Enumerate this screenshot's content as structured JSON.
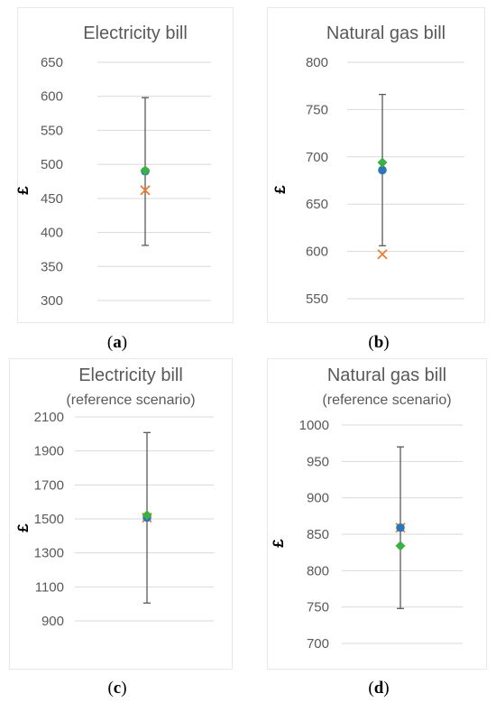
{
  "chart_data": [
    {
      "type": "scatter",
      "title": "Electricity bill",
      "subtitle": "",
      "ylabel": "£",
      "ylim": [
        300,
        650
      ],
      "yticks": [
        300,
        350,
        400,
        450,
        500,
        550,
        600,
        650
      ],
      "grid": true,
      "caption": "a",
      "series": [
        {
          "name": "",
          "marker": "circle",
          "color": "#2E75B6",
          "value": 490
        },
        {
          "name": "",
          "marker": "x",
          "color": "#ED7D31",
          "value": 462
        },
        {
          "name": "",
          "marker": "diamond",
          "color": "#3CB043",
          "value": 491
        }
      ],
      "error_range": [
        381,
        598
      ]
    },
    {
      "type": "scatter",
      "title": "Natural gas bill",
      "subtitle": "",
      "ylabel": "£",
      "ylim": [
        550,
        800
      ],
      "yticks": [
        550,
        600,
        650,
        700,
        750,
        800
      ],
      "grid": true,
      "caption": "b",
      "series": [
        {
          "name": "",
          "marker": "circle",
          "color": "#2E75B6",
          "value": 686
        },
        {
          "name": "",
          "marker": "x",
          "color": "#ED7D31",
          "value": 597
        },
        {
          "name": "",
          "marker": "diamond",
          "color": "#3CB043",
          "value": 694
        }
      ],
      "error_range": [
        606,
        766
      ]
    },
    {
      "type": "scatter",
      "title": "Electricity bill",
      "subtitle": "(reference scenario)",
      "ylabel": "£",
      "ylim": [
        900,
        2100
      ],
      "yticks": [
        900,
        1100,
        1300,
        1500,
        1700,
        1900,
        2100
      ],
      "grid": true,
      "caption": "c",
      "series": [
        {
          "name": "",
          "marker": "circle",
          "color": "#2E75B6",
          "value": 1508
        },
        {
          "name": "",
          "marker": "x",
          "color": "#ED7D31",
          "value": 1508
        },
        {
          "name": "",
          "marker": "diamond",
          "color": "#3CB043",
          "value": 1522
        }
      ],
      "error_range": [
        1005,
        2008
      ]
    },
    {
      "type": "scatter",
      "title": "Natural gas bill",
      "subtitle": "(reference scenario)",
      "ylabel": "£",
      "ylim": [
        700,
        1000
      ],
      "yticks": [
        700,
        750,
        800,
        850,
        900,
        950,
        1000
      ],
      "grid": true,
      "caption": "d",
      "series": [
        {
          "name": "",
          "marker": "circle",
          "color": "#2E75B6",
          "value": 859
        },
        {
          "name": "",
          "marker": "x",
          "color": "#ED7D31",
          "value": 859
        },
        {
          "name": "",
          "marker": "diamond",
          "color": "#3CB043",
          "value": 834
        }
      ],
      "error_range": [
        748,
        970
      ]
    }
  ]
}
